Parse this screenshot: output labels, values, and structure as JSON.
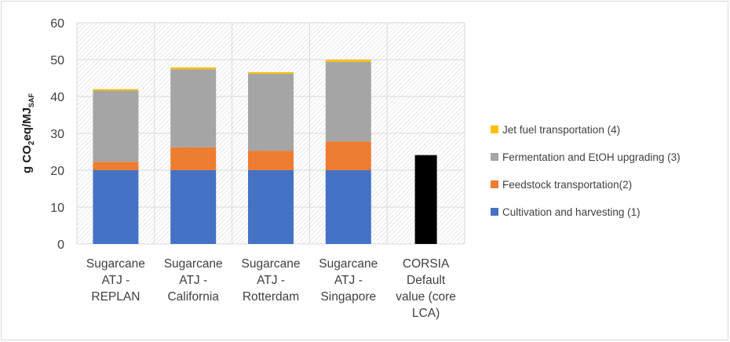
{
  "chart_data": {
    "type": "bar",
    "stacked": true,
    "ylabel": "g CO2eq/MJSAF",
    "ylabel_parts": {
      "main": "g CO",
      "sub1": "2",
      "mid": "eq/MJ",
      "sub2": "SAF"
    },
    "ylim": [
      0,
      60
    ],
    "yticks": [
      0,
      10,
      20,
      30,
      40,
      50,
      60
    ],
    "grid": true,
    "plot_pattern": "diagonal-hatch",
    "legend_position": "right",
    "categories": [
      [
        "Sugarcane",
        "ATJ -",
        "REPLAN"
      ],
      [
        "Sugarcane",
        "ATJ -",
        "California"
      ],
      [
        "Sugarcane",
        "ATJ -",
        "Rotterdam"
      ],
      [
        "Sugarcane",
        "ATJ -",
        "Singapore"
      ],
      [
        "CORSIA",
        "Default",
        "value (core",
        "LCA)"
      ]
    ],
    "series": [
      {
        "name": "Cultivation and harvesting (1)",
        "color": "#4472c4",
        "values": [
          20,
          20,
          20,
          20,
          null
        ]
      },
      {
        "name": "Feedstock transportation(2)",
        "color": "#ed7d31",
        "values": [
          2.3,
          6.2,
          5.3,
          7.8,
          null
        ]
      },
      {
        "name": "Fermentation and EtOH upgrading (3)",
        "color": "#a5a5a5",
        "values": [
          19.3,
          21.2,
          20.9,
          21.6,
          null
        ]
      },
      {
        "name": "Jet fuel transportation (4)",
        "color": "#ffc000",
        "values": [
          0.4,
          0.5,
          0.4,
          0.6,
          null
        ]
      }
    ],
    "extra_bar": {
      "category_index": 4,
      "value": 24.1,
      "color": "#000000"
    }
  }
}
